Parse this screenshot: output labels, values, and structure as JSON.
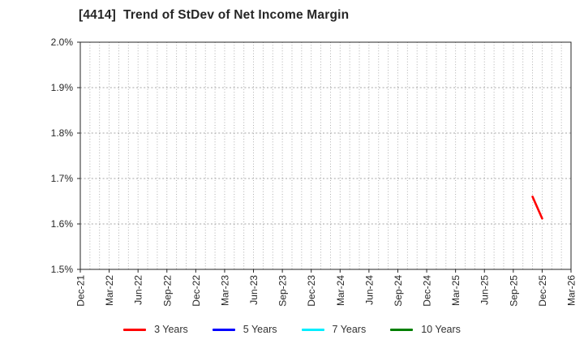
{
  "title": "[4414]  Trend of StDev of Net Income Margin",
  "chart_data": {
    "type": "line",
    "title": "[4414]  Trend of StDev of Net Income Margin",
    "xlabel": "",
    "ylabel": "",
    "ylim": [
      1.5,
      2.0
    ],
    "y_tick_format": "percent",
    "y_ticks": [
      {
        "value": 2.0,
        "label": "2.0%"
      },
      {
        "value": 1.9,
        "label": "1.9%"
      },
      {
        "value": 1.8,
        "label": "1.8%"
      },
      {
        "value": 1.7,
        "label": "1.7%"
      },
      {
        "value": 1.6,
        "label": "1.6%"
      },
      {
        "value": 1.5,
        "label": "1.5%"
      }
    ],
    "months_total": 51,
    "minor_vertical_grid": "monthly",
    "grid": true,
    "grid_color": "#a6a6a6",
    "axis_color": "#262626",
    "x_ticks": [
      {
        "month_index": 0,
        "label": "Dec-21"
      },
      {
        "month_index": 3,
        "label": "Mar-22"
      },
      {
        "month_index": 6,
        "label": "Jun-22"
      },
      {
        "month_index": 9,
        "label": "Sep-22"
      },
      {
        "month_index": 12,
        "label": "Dec-22"
      },
      {
        "month_index": 15,
        "label": "Mar-23"
      },
      {
        "month_index": 18,
        "label": "Jun-23"
      },
      {
        "month_index": 21,
        "label": "Sep-23"
      },
      {
        "month_index": 24,
        "label": "Dec-23"
      },
      {
        "month_index": 27,
        "label": "Mar-24"
      },
      {
        "month_index": 30,
        "label": "Jun-24"
      },
      {
        "month_index": 33,
        "label": "Sep-24"
      },
      {
        "month_index": 36,
        "label": "Dec-24"
      },
      {
        "month_index": 39,
        "label": "Mar-25"
      },
      {
        "month_index": 42,
        "label": "Jun-25"
      },
      {
        "month_index": 45,
        "label": "Sep-25"
      },
      {
        "month_index": 48,
        "label": "Dec-25"
      },
      {
        "month_index": 51,
        "label": "Mar-26"
      }
    ],
    "legend_position": "bottom-center",
    "series": [
      {
        "name": "3 Years",
        "color": "#ff0000",
        "points": [
          {
            "x": "Nov-25",
            "month_index": 47,
            "value_pct": 1.66
          },
          {
            "x": "Dec-25",
            "month_index": 48,
            "value_pct": 1.612
          }
        ]
      },
      {
        "name": "5 Years",
        "color": "#0000ff",
        "points": []
      },
      {
        "name": "7 Years",
        "color": "#00eeff",
        "points": []
      },
      {
        "name": "10 Years",
        "color": "#007f00",
        "points": []
      }
    ]
  }
}
